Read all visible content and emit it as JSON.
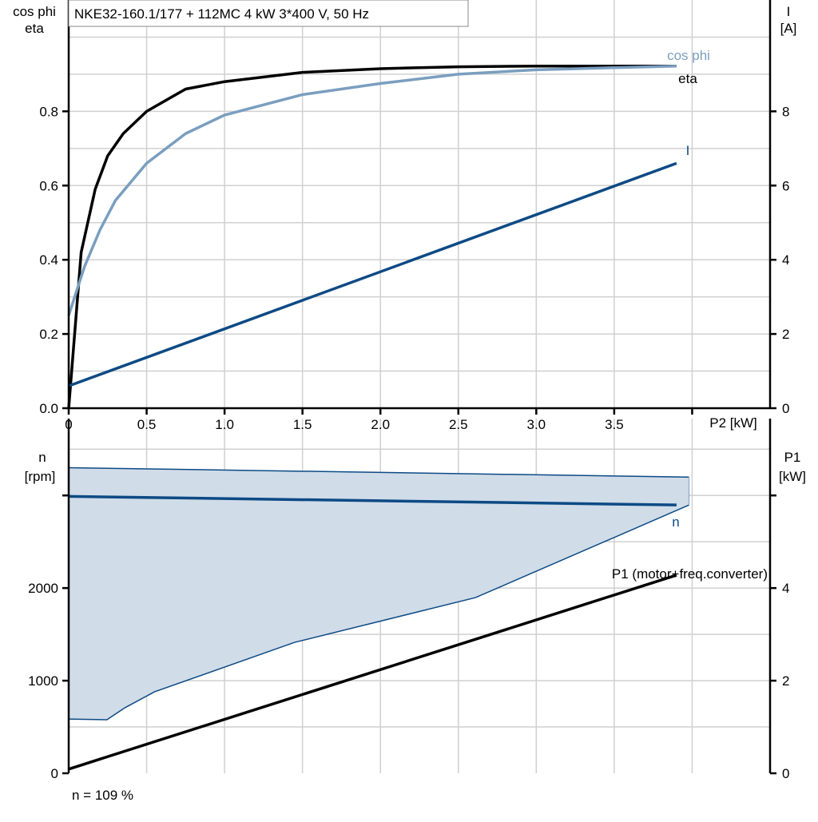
{
  "title": "NKE32-160.1/177 + 112MC   4 kW   3*400 V, 50 Hz",
  "footer": "n = 109 %",
  "colors": {
    "eta": "#000000",
    "cos_phi": "#7a9ebf",
    "current": "#0d4a85",
    "speed": "#0d4a85",
    "band_fill": "#d0dce8",
    "p1": "#000000"
  },
  "chart_data": [
    {
      "type": "line",
      "ylabel_left": [
        "cos phi",
        "eta"
      ],
      "ylabel_right": [
        "I",
        "[A]"
      ],
      "xlabel": "P2 [kW]",
      "xlim": [
        0,
        4.5
      ],
      "ylim_left": [
        0,
        1.1
      ],
      "ylim_right": [
        0,
        11
      ],
      "x_ticks": [
        "0",
        "0.5",
        "1.0",
        "1.5",
        "2.0",
        "2.5",
        "3.0",
        "3.5"
      ],
      "y_ticks_left": [
        "0.0",
        "0.2",
        "0.4",
        "0.6",
        "0.8"
      ],
      "y_ticks_right": [
        "0",
        "2",
        "4",
        "6",
        "8"
      ],
      "grid": true,
      "series": [
        {
          "name": "eta",
          "axis": "left",
          "points": [
            [
              0,
              0
            ],
            [
              0.08,
              0.42
            ],
            [
              0.17,
              0.59
            ],
            [
              0.25,
              0.68
            ],
            [
              0.35,
              0.74
            ],
            [
              0.5,
              0.8
            ],
            [
              0.75,
              0.86
            ],
            [
              1.0,
              0.88
            ],
            [
              1.5,
              0.905
            ],
            [
              2.0,
              0.915
            ],
            [
              2.5,
              0.92
            ],
            [
              3.0,
              0.922
            ],
            [
              3.9,
              0.922
            ]
          ]
        },
        {
          "name": "cos phi",
          "axis": "left",
          "points": [
            [
              0,
              0.25
            ],
            [
              0.1,
              0.38
            ],
            [
              0.2,
              0.48
            ],
            [
              0.3,
              0.56
            ],
            [
              0.5,
              0.66
            ],
            [
              0.75,
              0.74
            ],
            [
              1.0,
              0.79
            ],
            [
              1.5,
              0.845
            ],
            [
              2.0,
              0.875
            ],
            [
              2.5,
              0.9
            ],
            [
              3.0,
              0.912
            ],
            [
              3.9,
              0.922
            ]
          ]
        },
        {
          "name": "I",
          "axis": "right",
          "points": [
            [
              0,
              0.6
            ],
            [
              3.9,
              6.6
            ]
          ]
        }
      ]
    },
    {
      "type": "line",
      "ylabel_left": [
        "n",
        "[rpm]"
      ],
      "ylabel_right": [
        "P1",
        "[kW]"
      ],
      "xlim": [
        0,
        4.5
      ],
      "ylim_left": [
        0,
        3830
      ],
      "ylim_right": [
        0,
        7.66
      ],
      "y_ticks_left": [
        "0",
        "1000",
        "2000"
      ],
      "y_ticks_right": [
        "0",
        "2",
        "4"
      ],
      "grid": true,
      "band": {
        "upper": [
          [
            0,
            3300
          ],
          [
            3.98,
            3198
          ]
        ],
        "lower": [
          [
            0,
            586
          ],
          [
            0.245,
            578
          ],
          [
            0.36,
            707
          ],
          [
            0.55,
            879
          ],
          [
            1.45,
            1414
          ],
          [
            2.61,
            1897
          ],
          [
            3.98,
            2897
          ]
        ]
      },
      "series": [
        {
          "name": "n",
          "axis": "left",
          "points": [
            [
              0,
              2990
            ],
            [
              3.9,
              2897
            ]
          ]
        },
        {
          "name": "P1 (motor+freq.converter)",
          "axis": "right",
          "points": [
            [
              0,
              0.09
            ],
            [
              3.9,
              4.28
            ]
          ]
        }
      ]
    }
  ]
}
